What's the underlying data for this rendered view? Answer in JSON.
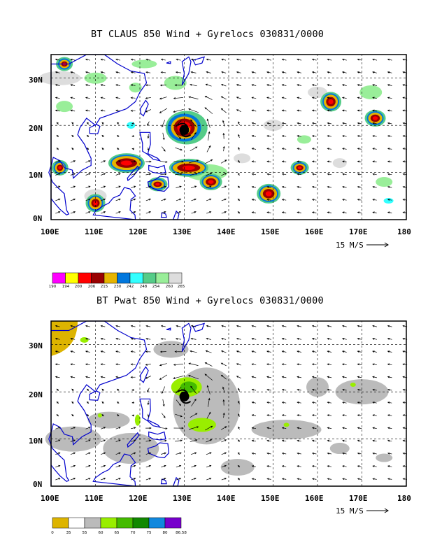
{
  "panels": [
    {
      "title": "BT CLAUS 850 Wind + Gyrelocs 030831/0000",
      "y_labels": [
        "30N",
        "20N",
        "10N",
        "0N"
      ],
      "x_labels": [
        "100E",
        "110E",
        "120E",
        "130E",
        "140E",
        "150E",
        "160E",
        "170E",
        "180"
      ],
      "scale_label": "15 M/S",
      "colorbar_labels": [
        "190",
        "194",
        "200",
        "206",
        "215",
        "230",
        "242",
        "248",
        "254",
        "260",
        "265"
      ],
      "colorbar_colors": [
        "#ff00ff",
        "#ffff00",
        "#ff0000",
        "#990000",
        "#e6b400",
        "#0077dd",
        "#33ffff",
        "#55cc88",
        "#99ee99",
        "#dddddd"
      ]
    },
    {
      "title": "BT Pwat 850 Wind + Gyrelocs 030831/0000",
      "y_labels": [
        "30N",
        "20N",
        "10N",
        "0N"
      ],
      "x_labels": [
        "100E",
        "110E",
        "120E",
        "130E",
        "140E",
        "150E",
        "160E",
        "170E",
        "180"
      ],
      "scale_label": "15 M/S",
      "colorbar_labels": [
        "0",
        "35",
        "55",
        "60",
        "65",
        "70",
        "75",
        "80",
        "86.58"
      ],
      "colorbar_colors": [
        "#ddb400",
        "#ffffff",
        "#bbbbbb",
        "#99ee00",
        "#44bb00",
        "#118800",
        "#1188dd",
        "#7700cc"
      ]
    }
  ],
  "map": {
    "lon_range": [
      100,
      180
    ],
    "lat_range": [
      0,
      35
    ],
    "gridlines": "dashed every 10 degrees",
    "coastline_color": "#0000cc",
    "gyre_location": "130E 19N"
  }
}
